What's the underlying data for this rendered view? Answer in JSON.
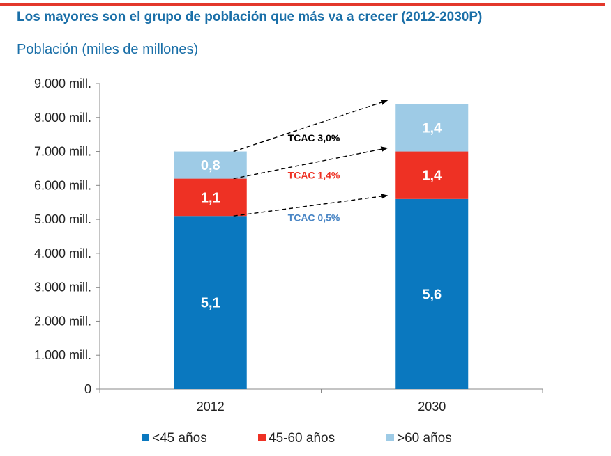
{
  "header": {
    "title": "Los mayores son el grupo de población que más va a crecer (2012-2030P)",
    "subtitle": "Población (miles de millones)"
  },
  "chart_data": {
    "type": "bar",
    "stacked": true,
    "categories": [
      "2012",
      "2030"
    ],
    "series": [
      {
        "name": "<45 años",
        "color": "#0a78bf",
        "values": [
          5.1,
          5.6
        ],
        "labels": [
          "5,1",
          "5,6"
        ]
      },
      {
        "name": "45-60 años",
        "color": "#ee3124",
        "values": [
          1.1,
          1.4
        ],
        "labels": [
          "1,1",
          "1,4"
        ]
      },
      {
        "name": ">60 años",
        "color": "#9ecbe6",
        "values": [
          0.8,
          1.4
        ],
        "labels": [
          "0,8",
          "1,4"
        ]
      }
    ],
    "ylim": [
      0,
      9000
    ],
    "y_ticks": [
      0,
      1000,
      2000,
      3000,
      4000,
      5000,
      6000,
      7000,
      8000,
      9000
    ],
    "y_tick_labels": [
      "0",
      "1.000 mill.",
      "2.000 mill.",
      "3.000 mill.",
      "4.000 mill.",
      "5.000 mill.",
      "6.000 mill.",
      "7.000 mill.",
      "8.000 mill.",
      "9.000 mill."
    ],
    "y_unit_factor": 1000,
    "legend_position": "bottom",
    "annotations": [
      {
        "text": "TCAC 3,0%",
        "series": ">60 años",
        "color": "#000000"
      },
      {
        "text": "TCAC 1,4%",
        "series": "45-60 años",
        "color": "#ee3124"
      },
      {
        "text": "TCAC 0,5%",
        "series": "<45 años",
        "color": "#4a86c5"
      }
    ]
  }
}
